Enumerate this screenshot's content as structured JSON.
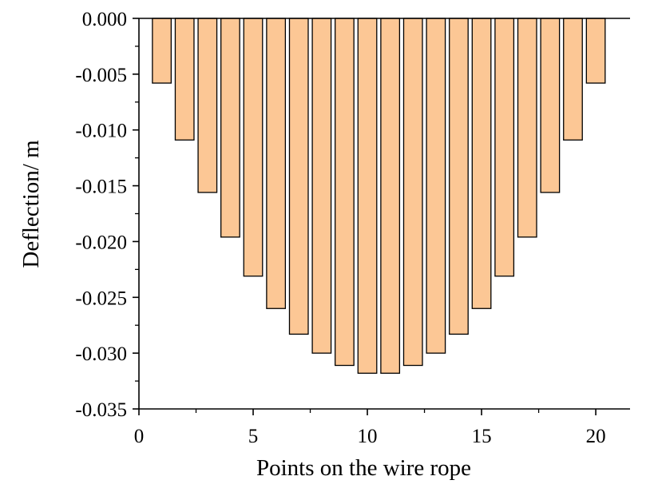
{
  "chart_data": {
    "type": "bar",
    "title": "",
    "xlabel": "Points on the wire rope",
    "ylabel": "Deflection/ m",
    "x": [
      1,
      2,
      3,
      4,
      5,
      6,
      7,
      8,
      9,
      10,
      11,
      12,
      13,
      14,
      15,
      16,
      17,
      18,
      19,
      20
    ],
    "values": [
      -0.0058,
      -0.0109,
      -0.0156,
      -0.0196,
      -0.0231,
      -0.026,
      -0.0283,
      -0.03,
      -0.0311,
      -0.0318,
      -0.0318,
      -0.0311,
      -0.03,
      -0.0283,
      -0.026,
      -0.0231,
      -0.0196,
      -0.0156,
      -0.0109,
      -0.0058
    ],
    "xlim": [
      0,
      21.5
    ],
    "ylim": [
      -0.035,
      0.0
    ],
    "x_ticks": [
      0,
      5,
      10,
      15,
      20
    ],
    "x_tick_labels": [
      "0",
      "5",
      "10",
      "15",
      "20"
    ],
    "y_ticks": [
      0.0,
      -0.005,
      -0.01,
      -0.015,
      -0.02,
      -0.025,
      -0.03,
      -0.035
    ],
    "y_tick_labels": [
      "0.000",
      "-0.005",
      "-0.010",
      "-0.015",
      "-0.020",
      "-0.025",
      "-0.030",
      "-0.035"
    ],
    "grid": false,
    "legend": "none",
    "colors": {
      "bar_fill": "#fcc795",
      "bar_edge": "#000000",
      "axis": "#000000"
    }
  }
}
